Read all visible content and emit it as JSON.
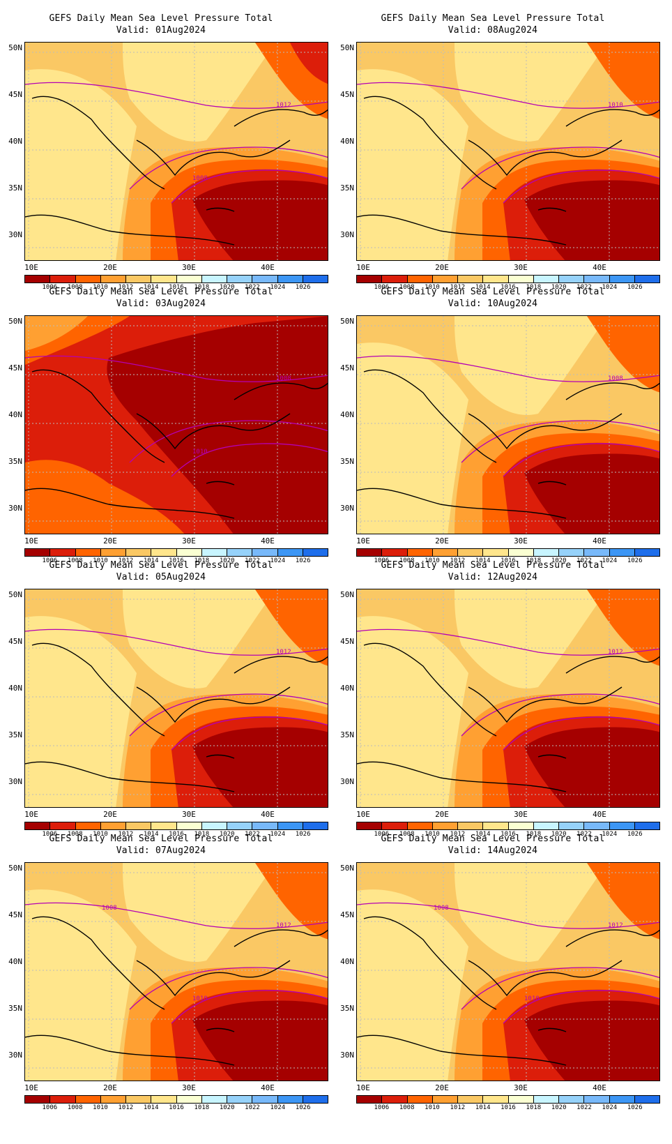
{
  "panels": [
    {
      "title": "GEFS Daily Mean Sea Level Pressure Total",
      "valid": "Valid: 01Aug2024",
      "contour_labels": [
        "1012",
        "1008"
      ],
      "regime": "weak"
    },
    {
      "title": "GEFS Daily Mean Sea Level Pressure Total",
      "valid": "Valid: 08Aug2024",
      "contour_labels": [
        "1010"
      ],
      "regime": "moderate"
    },
    {
      "title": "GEFS Daily Mean Sea Level Pressure Total",
      "valid": "Valid: 03Aug2024",
      "contour_labels": [
        "1008",
        "1010"
      ],
      "regime": "deep"
    },
    {
      "title": "GEFS Daily Mean Sea Level Pressure Total",
      "valid": "Valid: 10Aug2024",
      "contour_labels": [
        "1008"
      ],
      "regime": "moderate"
    },
    {
      "title": "GEFS Daily Mean Sea Level Pressure Total",
      "valid": "Valid: 05Aug2024",
      "contour_labels": [
        "1012"
      ],
      "regime": "moderate"
    },
    {
      "title": "GEFS Daily Mean Sea Level Pressure Total",
      "valid": "Valid: 12Aug2024",
      "contour_labels": [
        "1012"
      ],
      "regime": "moderate"
    },
    {
      "title": "GEFS Daily Mean Sea Level Pressure Total",
      "valid": "Valid: 07Aug2024",
      "contour_labels": [
        "1012",
        "1010",
        "1008"
      ],
      "regime": "moderate"
    },
    {
      "title": "GEFS Daily Mean Sea Level Pressure Total",
      "valid": "Valid: 14Aug2024",
      "contour_labels": [
        "1012",
        "1010",
        "1008"
      ],
      "regime": "moderate"
    }
  ],
  "lat_labels": [
    "50N",
    "45N",
    "40N",
    "35N",
    "30N"
  ],
  "lon_labels": [
    "10E",
    "20E",
    "30E",
    "40E"
  ],
  "colorbar_labels": [
    "1006",
    "1008",
    "1010",
    "1012",
    "1014",
    "1016",
    "1018",
    "1020",
    "1022",
    "1024",
    "1026"
  ],
  "colorbar_colors": [
    "#a50000",
    "#dc1e0a",
    "#ff6400",
    "#ffa032",
    "#fac864",
    "#ffe68c",
    "#faffd2",
    "#c8f5ff",
    "#96d2fa",
    "#78b9fa",
    "#3c96f5",
    "#1e6eeb"
  ],
  "contour_color": "#b400b4"
}
